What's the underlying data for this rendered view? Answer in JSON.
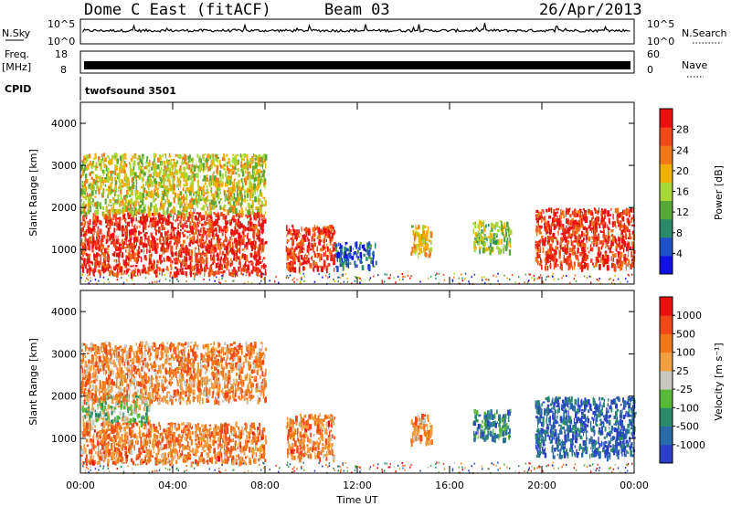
{
  "header": {
    "station": "Dome C East (fitACF)",
    "beam": "Beam 03",
    "date": "26/Apr/2013"
  },
  "strips": {
    "nsky_label": "N.Sky",
    "nsky_ticks": [
      "10^5",
      "10^0"
    ],
    "nsearch_label": "N.Search",
    "nsearch_ticks": [
      "10^5",
      "10^0"
    ],
    "freq_label_1": "Freq.",
    "freq_label_2": "[MHz]",
    "freq_ticks": [
      "18",
      "8"
    ],
    "nave_label": "Nave",
    "nave_ticks": [
      "60",
      "0"
    ],
    "cpid_label": "CPID",
    "cpid_value": "twofsound 3501"
  },
  "colors": {
    "power_scale": [
      "#1010e0",
      "#2050c8",
      "#2a8a6a",
      "#58a838",
      "#a8d838",
      "#f0b000",
      "#f07818",
      "#f04818",
      "#e81010"
    ],
    "velocity_scale": [
      "#2a3ec8",
      "#2a6aa8",
      "#2a8a6a",
      "#58b838",
      "#c8c8c0",
      "#f0a040",
      "#f07818",
      "#f04818",
      "#e81010"
    ]
  },
  "chart_data": [
    {
      "type": "heatmap",
      "name": "power",
      "ylabel": "Slant Range [km]",
      "xlabel": "",
      "colorbar_label": "Power [dB]",
      "colorbar_ticks": [
        "4",
        "8",
        "12",
        "16",
        "20",
        "24",
        "28"
      ],
      "yticks": [
        "1000",
        "2000",
        "3000",
        "4000"
      ],
      "xticks": [
        "00:00",
        "04:00",
        "08:00",
        "12:00",
        "16:00",
        "20:00",
        "00:00"
      ],
      "xlim_hours": [
        0,
        24
      ],
      "ylim_km": [
        180,
        4500
      ],
      "regions": [
        {
          "t0": 0.0,
          "t1": 8.0,
          "r0": 450,
          "r1": 1900,
          "level": 0.9
        },
        {
          "t0": 0.0,
          "t1": 8.0,
          "r0": 1900,
          "r1": 3300,
          "level": 0.55
        },
        {
          "t0": 8.9,
          "t1": 11.0,
          "r0": 550,
          "r1": 1600,
          "level": 0.88
        },
        {
          "t0": 11.0,
          "t1": 12.8,
          "r0": 600,
          "r1": 1200,
          "level": 0.2
        },
        {
          "t0": 14.3,
          "t1": 15.2,
          "r0": 900,
          "r1": 1600,
          "level": 0.6
        },
        {
          "t0": 17.0,
          "t1": 18.6,
          "r0": 1000,
          "r1": 1700,
          "level": 0.45
        },
        {
          "t0": 19.7,
          "t1": 24.0,
          "r0": 600,
          "r1": 2000,
          "level": 0.88
        }
      ]
    },
    {
      "type": "heatmap",
      "name": "velocity",
      "ylabel": "Slant Range [km]",
      "xlabel": "Time UT",
      "colorbar_label": "Velocity [m s⁻¹]",
      "colorbar_ticks": [
        "1000",
        "500",
        "100",
        "25",
        "-25",
        "-100",
        "-500",
        "-1000"
      ],
      "yticks": [
        "1000",
        "2000",
        "3000",
        "4000"
      ],
      "xticks": [
        "00:00",
        "04:00",
        "08:00",
        "12:00",
        "16:00",
        "20:00",
        "00:00"
      ],
      "xlim_hours": [
        0,
        24
      ],
      "ylim_km": [
        180,
        4500
      ],
      "regions": [
        {
          "t0": 0.0,
          "t1": 3.0,
          "r0": 1400,
          "r1": 2100,
          "level": 0.45
        },
        {
          "t0": 0.0,
          "t1": 8.0,
          "r0": 450,
          "r1": 1400,
          "level": 0.72
        },
        {
          "t0": 0.0,
          "t1": 8.0,
          "r0": 1900,
          "r1": 3300,
          "level": 0.68
        },
        {
          "t0": 8.9,
          "t1": 11.0,
          "r0": 550,
          "r1": 1600,
          "level": 0.72
        },
        {
          "t0": 14.3,
          "t1": 15.2,
          "r0": 900,
          "r1": 1600,
          "level": 0.7
        },
        {
          "t0": 17.0,
          "t1": 18.6,
          "r0": 1000,
          "r1": 1700,
          "level": 0.25
        },
        {
          "t0": 19.7,
          "t1": 24.0,
          "r0": 600,
          "r1": 2000,
          "level": 0.15
        }
      ]
    }
  ]
}
